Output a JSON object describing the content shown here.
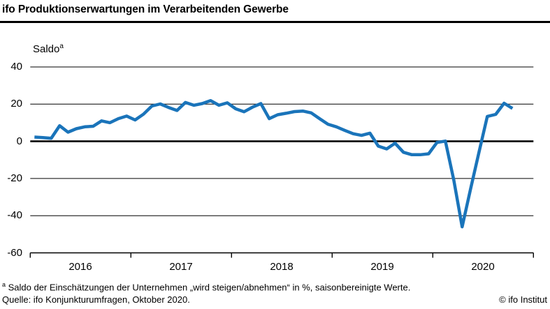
{
  "header": {
    "title": "ifo Produktionserwartungen im Verarbeitenden Gewerbe"
  },
  "chart": {
    "y_axis_label": "Saldo",
    "y_axis_label_sup": "a",
    "y_tick_labels": [
      "40",
      "20",
      "0",
      "-20",
      "-40",
      "-60"
    ],
    "x_tick_labels": [
      "2016",
      "2017",
      "2018",
      "2019",
      "2020"
    ],
    "line_color": "#1a74ba"
  },
  "chart_data": {
    "type": "line",
    "title": "ifo Produktionserwartungen im Verarbeitenden Gewerbe",
    "ylabel": "Saldo",
    "ylim": [
      -60,
      40
    ],
    "y_ticks": [
      40,
      20,
      0,
      -20,
      -40,
      -60
    ],
    "x_tick_labels": [
      "2016",
      "2017",
      "2018",
      "2019",
      "2020"
    ],
    "grid": "horizontal",
    "legend_position": "none",
    "start_month": "2016-01",
    "end_month": "2020-10",
    "series": [
      {
        "name": "Produktionserwartungen (Saldo, saisonbereinigt)",
        "values": [
          2.3,
          2.0,
          1.6,
          8.4,
          4.9,
          6.8,
          7.8,
          8.1,
          11.0,
          10.0,
          12.2,
          13.6,
          11.5,
          14.6,
          19.0,
          20.1,
          18.2,
          16.6,
          20.9,
          19.4,
          20.3,
          21.9,
          19.4,
          20.7,
          17.5,
          15.9,
          18.4,
          20.3,
          12.2,
          14.3,
          15.1,
          16.0,
          16.3,
          15.3,
          12.2,
          9.2,
          7.8,
          5.9,
          4.1,
          3.2,
          4.4,
          -2.6,
          -4.1,
          -1.0,
          -5.9,
          -7.2,
          -7.2,
          -6.7,
          -0.6,
          0.1,
          -20.8,
          -46.0,
          -25.7,
          -6.0,
          13.4,
          14.5,
          20.5,
          17.7
        ]
      }
    ]
  },
  "footer": {
    "footnote_sup": "a",
    "footnote": " Saldo der Einschätzungen der Unternehmen „wird steigen/abnehmen“ in %, saisonbereinigte Werte.",
    "source": "Quelle: ifo Konjunkturumfragen, Oktober 2020.",
    "copyright": "© ifo Institut"
  }
}
